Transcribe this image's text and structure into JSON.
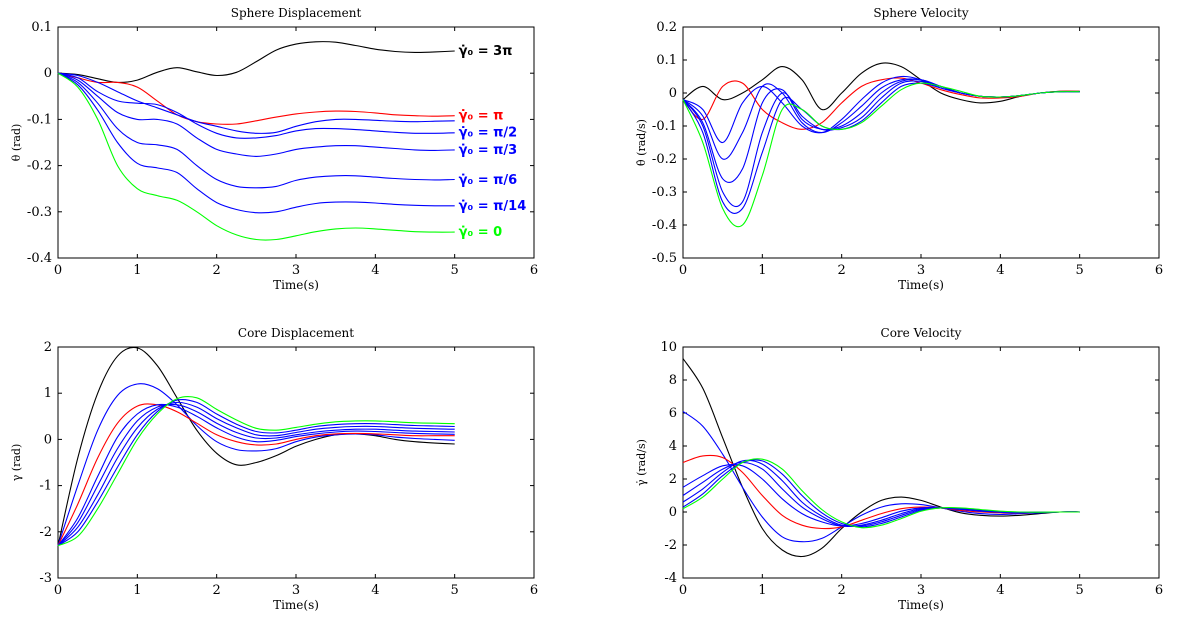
{
  "chart_data": [
    {
      "type": "line",
      "title": "Sphere Displacement",
      "xlabel": "Time(s)",
      "ylabel": "θ (rad)",
      "xlim": [
        0,
        6
      ],
      "ylim": [
        -0.4,
        0.1
      ],
      "xticks": [
        0,
        1,
        2,
        3,
        4,
        5,
        6
      ],
      "yticks": [
        -0.4,
        -0.3,
        -0.2,
        -0.1,
        0,
        0.1
      ],
      "x": [
        0,
        0.25,
        0.5,
        0.75,
        1,
        1.25,
        1.5,
        1.75,
        2,
        2.25,
        2.5,
        2.75,
        3,
        3.25,
        3.5,
        3.75,
        4,
        4.25,
        4.5,
        4.75,
        5
      ],
      "series": [
        {
          "color": "#000000",
          "values": [
            0,
            -0.003,
            -0.012,
            -0.02,
            -0.015,
            0.002,
            0.012,
            0.003,
            -0.005,
            0.002,
            0.025,
            0.05,
            0.063,
            0.068,
            0.067,
            0.06,
            0.052,
            0.047,
            0.045,
            0.046,
            0.048
          ]
        },
        {
          "color": "#ff0000",
          "values": [
            0,
            -0.01,
            -0.02,
            -0.02,
            -0.03,
            -0.06,
            -0.09,
            -0.105,
            -0.11,
            -0.11,
            -0.103,
            -0.095,
            -0.088,
            -0.084,
            -0.082,
            -0.083,
            -0.086,
            -0.09,
            -0.092,
            -0.093,
            -0.092
          ]
        },
        {
          "color": "#0000ff",
          "values": [
            0,
            -0.005,
            -0.02,
            -0.04,
            -0.06,
            -0.075,
            -0.09,
            -0.105,
            -0.115,
            -0.125,
            -0.13,
            -0.128,
            -0.115,
            -0.105,
            -0.1,
            -0.1,
            -0.102,
            -0.104,
            -0.105,
            -0.104,
            -0.103
          ]
        },
        {
          "color": "#0000ff",
          "values": [
            0,
            -0.01,
            -0.04,
            -0.06,
            -0.065,
            -0.068,
            -0.085,
            -0.11,
            -0.13,
            -0.14,
            -0.14,
            -0.135,
            -0.125,
            -0.12,
            -0.12,
            -0.122,
            -0.125,
            -0.128,
            -0.13,
            -0.13,
            -0.129
          ]
        },
        {
          "color": "#0000ff",
          "values": [
            0,
            -0.015,
            -0.05,
            -0.085,
            -0.1,
            -0.1,
            -0.11,
            -0.14,
            -0.165,
            -0.175,
            -0.18,
            -0.175,
            -0.165,
            -0.16,
            -0.157,
            -0.157,
            -0.16,
            -0.163,
            -0.166,
            -0.167,
            -0.166
          ]
        },
        {
          "color": "#0000ff",
          "values": [
            0,
            -0.02,
            -0.065,
            -0.12,
            -0.15,
            -0.155,
            -0.165,
            -0.2,
            -0.23,
            -0.245,
            -0.248,
            -0.245,
            -0.232,
            -0.225,
            -0.222,
            -0.222,
            -0.225,
            -0.228,
            -0.23,
            -0.231,
            -0.23
          ]
        },
        {
          "color": "#0000ff",
          "values": [
            0,
            -0.025,
            -0.08,
            -0.15,
            -0.195,
            -0.205,
            -0.215,
            -0.25,
            -0.28,
            -0.295,
            -0.302,
            -0.3,
            -0.29,
            -0.282,
            -0.279,
            -0.279,
            -0.281,
            -0.284,
            -0.286,
            -0.287,
            -0.287
          ]
        },
        {
          "color": "#00ff00",
          "values": [
            0,
            -0.03,
            -0.1,
            -0.2,
            -0.25,
            -0.265,
            -0.275,
            -0.3,
            -0.33,
            -0.35,
            -0.36,
            -0.36,
            -0.352,
            -0.343,
            -0.337,
            -0.335,
            -0.337,
            -0.34,
            -0.343,
            -0.344,
            -0.344
          ]
        }
      ],
      "annotations": [
        {
          "text": "γ̇₀ = 3π",
          "color": "#000000",
          "x": 5.05,
          "y": 0.048
        },
        {
          "text": "γ̇₀ = π",
          "color": "#ff0000",
          "x": 5.05,
          "y": -0.092
        },
        {
          "text": "γ̇₀ = π/2",
          "color": "#0000ff",
          "x": 5.05,
          "y": -0.128
        },
        {
          "text": "γ̇₀ = π/3",
          "color": "#0000ff",
          "x": 5.05,
          "y": -0.166
        },
        {
          "text": "γ̇₀ = π/6",
          "color": "#0000ff",
          "x": 5.05,
          "y": -0.231
        },
        {
          "text": "γ̇₀ = π/14",
          "color": "#0000ff",
          "x": 5.05,
          "y": -0.287
        },
        {
          "text": "γ̇₀ = 0",
          "color": "#00ff00",
          "x": 5.05,
          "y": -0.344
        }
      ]
    },
    {
      "type": "line",
      "title": "Sphere Velocity",
      "xlabel": "Time(s)",
      "ylabel": "θ̇ (rad/s)",
      "xlim": [
        0,
        6
      ],
      "ylim": [
        -0.5,
        0.2
      ],
      "xticks": [
        0,
        1,
        2,
        3,
        4,
        5,
        6
      ],
      "yticks": [
        -0.5,
        -0.4,
        -0.3,
        -0.2,
        -0.1,
        0,
        0.1,
        0.2
      ],
      "x": [
        0,
        0.25,
        0.5,
        0.75,
        1,
        1.25,
        1.5,
        1.75,
        2,
        2.25,
        2.5,
        2.75,
        3,
        3.25,
        3.5,
        3.75,
        4,
        4.25,
        4.5,
        4.75,
        5
      ],
      "series": [
        {
          "color": "#000000",
          "values": [
            -0.02,
            0.02,
            -0.02,
            0,
            0.04,
            0.08,
            0.04,
            -0.05,
            0,
            0.06,
            0.09,
            0.08,
            0.04,
            0,
            -0.02,
            -0.03,
            -0.025,
            -0.01,
            0,
            0.005,
            0.005
          ]
        },
        {
          "color": "#ff0000",
          "values": [
            -0.02,
            -0.08,
            0.02,
            0.03,
            -0.05,
            -0.09,
            -0.11,
            -0.09,
            -0.03,
            0.02,
            0.04,
            0.045,
            0.03,
            0.01,
            -0.005,
            -0.015,
            -0.015,
            -0.01,
            0,
            0.005,
            0.005
          ]
        },
        {
          "color": "#0000ff",
          "values": [
            -0.02,
            -0.05,
            -0.15,
            -0.03,
            0.02,
            -0.03,
            -0.1,
            -0.12,
            -0.08,
            -0.02,
            0.03,
            0.05,
            0.04,
            0.015,
            0,
            -0.01,
            -0.012,
            -0.008,
            0,
            0.004,
            0.004
          ]
        },
        {
          "color": "#0000ff",
          "values": [
            -0.02,
            -0.07,
            -0.2,
            -0.12,
            0.02,
            0,
            -0.09,
            -0.12,
            -0.09,
            -0.04,
            0.015,
            0.04,
            0.04,
            0.02,
            0,
            -0.01,
            -0.012,
            -0.008,
            0,
            0.004,
            0.004
          ]
        },
        {
          "color": "#0000ff",
          "values": [
            -0.02,
            -0.09,
            -0.26,
            -0.23,
            -0.03,
            0.01,
            -0.08,
            -0.11,
            -0.1,
            -0.06,
            0,
            0.035,
            0.04,
            0.02,
            0,
            -0.01,
            -0.012,
            -0.008,
            0,
            0.004,
            0.004
          ]
        },
        {
          "color": "#0000ff",
          "values": [
            -0.02,
            -0.1,
            -0.3,
            -0.33,
            -0.12,
            0,
            -0.07,
            -0.11,
            -0.105,
            -0.075,
            -0.015,
            0.03,
            0.035,
            0.02,
            0,
            -0.01,
            -0.012,
            -0.008,
            0,
            0.004,
            0.004
          ]
        },
        {
          "color": "#0000ff",
          "values": [
            -0.02,
            -0.12,
            -0.33,
            -0.35,
            -0.18,
            -0.02,
            -0.05,
            -0.1,
            -0.11,
            -0.085,
            -0.03,
            0.02,
            0.03,
            0.015,
            0,
            -0.01,
            -0.012,
            -0.008,
            0,
            0.004,
            0.004
          ]
        },
        {
          "color": "#00ff00",
          "values": [
            -0.02,
            -0.15,
            -0.35,
            -0.4,
            -0.25,
            -0.05,
            -0.05,
            -0.1,
            -0.11,
            -0.09,
            -0.04,
            0.01,
            0.03,
            0.02,
            0.005,
            -0.01,
            -0.012,
            -0.008,
            0,
            0.004,
            0.004
          ]
        }
      ]
    },
    {
      "type": "line",
      "title": "Core Displacement",
      "xlabel": "Time(s)",
      "ylabel": "γ (rad)",
      "xlim": [
        0,
        6
      ],
      "ylim": [
        -3,
        2
      ],
      "xticks": [
        0,
        1,
        2,
        3,
        4,
        5,
        6
      ],
      "yticks": [
        -3,
        -2,
        -1,
        0,
        1,
        2
      ],
      "x": [
        0,
        0.25,
        0.5,
        0.75,
        1,
        1.25,
        1.5,
        1.75,
        2,
        2.25,
        2.5,
        2.75,
        3,
        3.25,
        3.5,
        3.75,
        4,
        4.25,
        4.5,
        4.75,
        5
      ],
      "series": [
        {
          "color": "#000000",
          "values": [
            -2.3,
            -0.4,
            1.0,
            1.8,
            1.98,
            1.6,
            0.9,
            0.2,
            -0.3,
            -0.55,
            -0.5,
            -0.35,
            -0.15,
            0,
            0.1,
            0.12,
            0.08,
            0,
            -0.05,
            -0.08,
            -0.1
          ]
        },
        {
          "color": "#0000ff",
          "values": [
            -2.3,
            -1.0,
            0.2,
            0.95,
            1.2,
            1.1,
            0.75,
            0.3,
            -0.05,
            -0.22,
            -0.25,
            -0.2,
            -0.05,
            0.05,
            0.1,
            0.12,
            0.1,
            0.05,
            0.02,
            0.0,
            -0.02
          ]
        },
        {
          "color": "#ff0000",
          "values": [
            -2.3,
            -1.4,
            -0.4,
            0.35,
            0.72,
            0.75,
            0.6,
            0.35,
            0.1,
            -0.05,
            -0.12,
            -0.1,
            0,
            0.08,
            0.12,
            0.13,
            0.12,
            0.1,
            0.08,
            0.08,
            0.08
          ]
        },
        {
          "color": "#0000ff",
          "values": [
            -2.3,
            -1.7,
            -0.8,
            0.05,
            0.55,
            0.75,
            0.7,
            0.5,
            0.25,
            0.05,
            -0.05,
            -0.02,
            0.06,
            0.12,
            0.16,
            0.18,
            0.17,
            0.15,
            0.13,
            0.12,
            0.11
          ]
        },
        {
          "color": "#0000ff",
          "values": [
            -2.3,
            -1.8,
            -1.0,
            -0.2,
            0.4,
            0.7,
            0.75,
            0.6,
            0.35,
            0.15,
            0.03,
            0.03,
            0.1,
            0.16,
            0.2,
            0.22,
            0.22,
            0.2,
            0.18,
            0.17,
            0.16
          ]
        },
        {
          "color": "#0000ff",
          "values": [
            -2.3,
            -1.9,
            -1.2,
            -0.4,
            0.25,
            0.65,
            0.8,
            0.7,
            0.45,
            0.25,
            0.1,
            0.08,
            0.15,
            0.22,
            0.26,
            0.28,
            0.28,
            0.26,
            0.24,
            0.23,
            0.22
          ]
        },
        {
          "color": "#0000ff",
          "values": [
            -2.3,
            -2.0,
            -1.35,
            -0.6,
            0.1,
            0.6,
            0.85,
            0.8,
            0.55,
            0.33,
            0.17,
            0.14,
            0.2,
            0.28,
            0.32,
            0.34,
            0.34,
            0.32,
            0.3,
            0.29,
            0.28
          ]
        },
        {
          "color": "#00ff00",
          "values": [
            -2.3,
            -2.1,
            -1.5,
            -0.75,
            0.0,
            0.55,
            0.88,
            0.9,
            0.65,
            0.42,
            0.24,
            0.2,
            0.26,
            0.33,
            0.38,
            0.4,
            0.4,
            0.38,
            0.36,
            0.35,
            0.34
          ]
        }
      ]
    },
    {
      "type": "line",
      "title": "Core Velocity",
      "xlabel": "Time(s)",
      "ylabel": "γ̇ (rad/s)",
      "xlim": [
        0,
        6
      ],
      "ylim": [
        -4,
        10
      ],
      "xticks": [
        0,
        1,
        2,
        3,
        4,
        5,
        6
      ],
      "yticks": [
        -4,
        -2,
        0,
        2,
        4,
        6,
        8,
        10
      ],
      "x": [
        0,
        0.25,
        0.5,
        0.75,
        1,
        1.25,
        1.5,
        1.75,
        2,
        2.25,
        2.5,
        2.75,
        3,
        3.25,
        3.5,
        3.75,
        4,
        4.25,
        4.5,
        4.75,
        5
      ],
      "series": [
        {
          "color": "#000000",
          "values": [
            9.3,
            7.5,
            4.5,
            1.5,
            -1.0,
            -2.3,
            -2.7,
            -2.2,
            -1.0,
            0.0,
            0.7,
            0.9,
            0.7,
            0.3,
            -0.05,
            -0.2,
            -0.25,
            -0.2,
            -0.1,
            0,
            0
          ]
        },
        {
          "color": "#0000ff",
          "values": [
            6.1,
            5.2,
            3.5,
            1.5,
            -0.3,
            -1.5,
            -1.8,
            -1.6,
            -0.9,
            -0.2,
            0.3,
            0.5,
            0.45,
            0.25,
            0.05,
            -0.1,
            -0.15,
            -0.1,
            -0.05,
            0,
            0
          ]
        },
        {
          "color": "#ff0000",
          "values": [
            3.0,
            3.4,
            3.3,
            2.4,
            1.0,
            -0.2,
            -0.8,
            -1.0,
            -0.9,
            -0.5,
            -0.1,
            0.2,
            0.3,
            0.25,
            0.1,
            0,
            -0.05,
            -0.05,
            -0.02,
            0,
            0
          ]
        },
        {
          "color": "#0000ff",
          "values": [
            1.5,
            2.2,
            2.8,
            2.8,
            2.0,
            0.8,
            -0.1,
            -0.6,
            -0.85,
            -0.7,
            -0.35,
            0.05,
            0.25,
            0.25,
            0.15,
            0.05,
            -0.02,
            -0.04,
            -0.02,
            0,
            0
          ]
        },
        {
          "color": "#0000ff",
          "values": [
            1.0,
            1.8,
            2.6,
            3.0,
            2.6,
            1.4,
            0.3,
            -0.4,
            -0.85,
            -0.8,
            -0.5,
            -0.1,
            0.2,
            0.25,
            0.18,
            0.08,
            0,
            -0.03,
            -0.02,
            0,
            0
          ]
        },
        {
          "color": "#0000ff",
          "values": [
            0.6,
            1.4,
            2.4,
            3.1,
            2.9,
            1.9,
            0.6,
            -0.25,
            -0.8,
            -0.85,
            -0.6,
            -0.2,
            0.15,
            0.25,
            0.2,
            0.1,
            0.02,
            -0.02,
            -0.02,
            0,
            0
          ]
        },
        {
          "color": "#0000ff",
          "values": [
            0.3,
            1.1,
            2.2,
            3.0,
            3.1,
            2.3,
            1.0,
            -0.05,
            -0.7,
            -0.9,
            -0.7,
            -0.3,
            0.1,
            0.25,
            0.22,
            0.12,
            0.03,
            -0.01,
            -0.01,
            0,
            0
          ]
        },
        {
          "color": "#00ff00",
          "values": [
            0.2,
            0.9,
            2.0,
            3.0,
            3.2,
            2.6,
            1.3,
            0.15,
            -0.6,
            -0.95,
            -0.8,
            -0.4,
            0.05,
            0.25,
            0.25,
            0.15,
            0.05,
            0,
            -0.01,
            0,
            0
          ]
        }
      ]
    }
  ]
}
